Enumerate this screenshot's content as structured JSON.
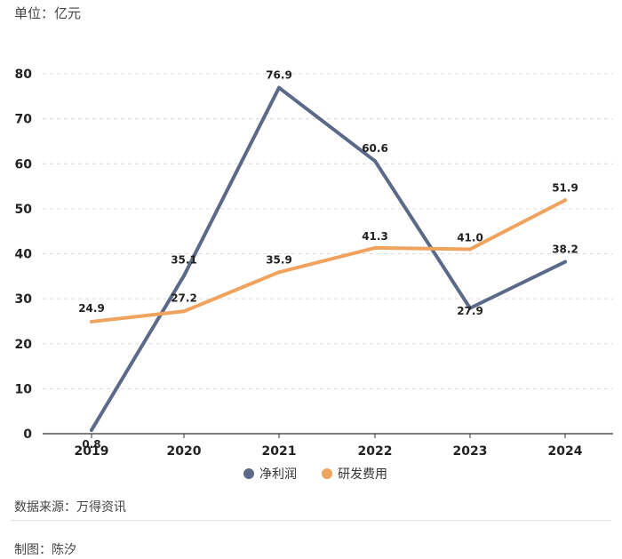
{
  "unit_label": "单位：亿元",
  "source_note": "数据来源：万得资讯",
  "author_note": "制图：陈汐",
  "colors": {
    "net_profit": "#5b6a88",
    "rd_expense": "#f0a35e",
    "grid": "#dcdcdc",
    "axis": "#333333"
  },
  "chart_data": {
    "type": "line",
    "title": "",
    "xlabel": "",
    "ylabel": "",
    "categories": [
      "2019",
      "2020",
      "2021",
      "2022",
      "2023",
      "2024"
    ],
    "ylim": [
      0,
      80
    ],
    "yticks": [
      0,
      10,
      20,
      30,
      40,
      50,
      60,
      70,
      80
    ],
    "grid": "horizontal-dashed",
    "legend": "bottom-center",
    "series": [
      {
        "name": "净利润",
        "values": [
          0.8,
          35.1,
          76.9,
          60.6,
          27.9,
          38.2
        ],
        "labels": [
          "0.8",
          "35.1",
          "76.9",
          "60.6",
          "27.9",
          "38.2"
        ]
      },
      {
        "name": "研发费用",
        "values": [
          24.9,
          27.2,
          35.9,
          41.3,
          41.0,
          51.9
        ],
        "labels": [
          "24.9",
          "27.2",
          "35.9",
          "41.3",
          "41.0",
          "51.9"
        ]
      }
    ]
  }
}
